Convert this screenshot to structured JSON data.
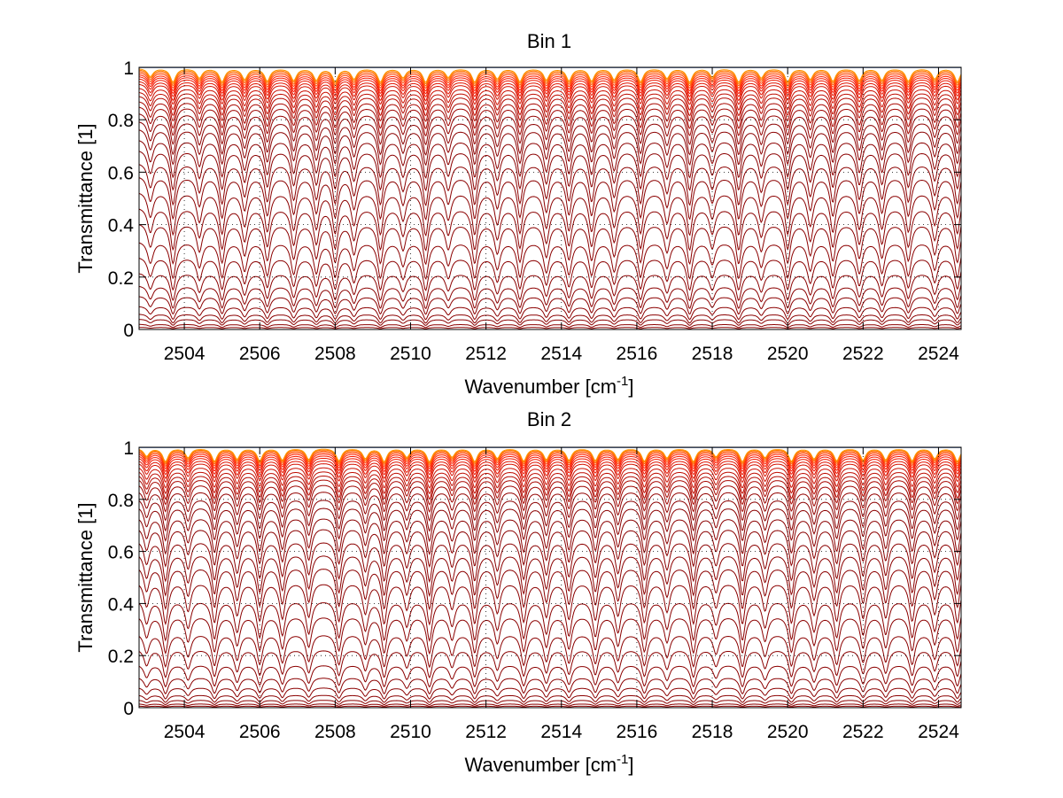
{
  "chart_data": [
    {
      "type": "line",
      "title": "Bin 1",
      "xlabel": "Wavenumber [cm",
      "xlabel_sup": "-1",
      "xlabel_end": "]",
      "ylabel": "Transmittance [1]",
      "xlim": [
        2502.8,
        2524.6
      ],
      "ylim": [
        0,
        1
      ],
      "xticks": [
        2504,
        2506,
        2508,
        2510,
        2512,
        2514,
        2516,
        2518,
        2520,
        2522,
        2524
      ],
      "yticks": [
        0,
        0.2,
        0.4,
        0.6,
        0.8,
        1
      ],
      "yticklabels": [
        "0",
        "0.2",
        "0.4",
        "0.6",
        "0.8",
        "1"
      ],
      "grid": true,
      "line_centers": [
        2503.1,
        2503.7,
        2504.4,
        2505.0,
        2505.6,
        2506.2,
        2506.9,
        2507.5,
        2508.0,
        2508.5,
        2509.2,
        2509.8,
        2510.4,
        2511.0,
        2511.7,
        2512.3,
        2512.9,
        2513.6,
        2514.2,
        2514.8,
        2515.4,
        2516.1,
        2516.8,
        2517.4,
        2518.0,
        2518.7,
        2519.3,
        2520.0,
        2520.6,
        2521.2,
        2521.9,
        2522.5,
        2523.2,
        2523.9,
        2524.5
      ],
      "curve_levels": [
        0.0,
        0.008,
        0.02,
        0.04,
        0.06,
        0.09,
        0.13,
        0.17,
        0.22,
        0.28,
        0.34,
        0.41,
        0.47,
        0.53,
        0.59,
        0.64,
        0.69,
        0.73,
        0.77,
        0.8,
        0.83,
        0.855,
        0.875,
        0.895,
        0.91,
        0.925,
        0.94,
        0.95,
        0.96,
        0.968,
        0.975,
        0.982,
        0.988,
        0.993,
        0.997,
        1.0
      ],
      "colors": {
        "deep": "#8b0000",
        "mid": "#ff1a00",
        "light": "#ffb000",
        "top": "#00308a"
      }
    },
    {
      "type": "line",
      "title": "Bin 2",
      "xlabel": "Wavenumber [cm",
      "xlabel_sup": "-1",
      "xlabel_end": "]",
      "ylabel": "Transmittance [1]",
      "xlim": [
        2502.8,
        2524.6
      ],
      "ylim": [
        0,
        1
      ],
      "xticks": [
        2504,
        2506,
        2508,
        2510,
        2512,
        2514,
        2516,
        2518,
        2520,
        2522,
        2524
      ],
      "yticks": [
        0,
        0.2,
        0.4,
        0.6,
        0.8,
        1
      ],
      "yticklabels": [
        "0",
        "0.2",
        "0.4",
        "0.6",
        "0.8",
        "1"
      ],
      "grid": true,
      "line_centers": [
        2503.0,
        2503.5,
        2504.1,
        2504.8,
        2505.4,
        2506.0,
        2506.6,
        2507.3,
        2508.1,
        2508.8,
        2509.3,
        2509.9,
        2510.5,
        2511.1,
        2511.7,
        2512.3,
        2513.0,
        2513.6,
        2514.2,
        2514.9,
        2515.5,
        2516.2,
        2516.8,
        2517.5,
        2518.1,
        2518.8,
        2519.4,
        2520.1,
        2520.7,
        2521.3,
        2522.0,
        2522.6,
        2523.3,
        2523.9,
        2524.5
      ],
      "curve_levels": [
        0.0,
        0.006,
        0.015,
        0.03,
        0.05,
        0.08,
        0.12,
        0.17,
        0.23,
        0.29,
        0.36,
        0.42,
        0.49,
        0.55,
        0.6,
        0.65,
        0.7,
        0.74,
        0.78,
        0.81,
        0.84,
        0.865,
        0.885,
        0.9,
        0.915,
        0.93,
        0.945,
        0.955,
        0.965,
        0.973,
        0.98,
        0.986,
        0.991,
        0.995,
        0.998,
        1.0
      ],
      "colors": {
        "deep": "#8b0000",
        "mid": "#ff1a00",
        "light": "#ffb000",
        "top": "#00308a"
      }
    }
  ]
}
